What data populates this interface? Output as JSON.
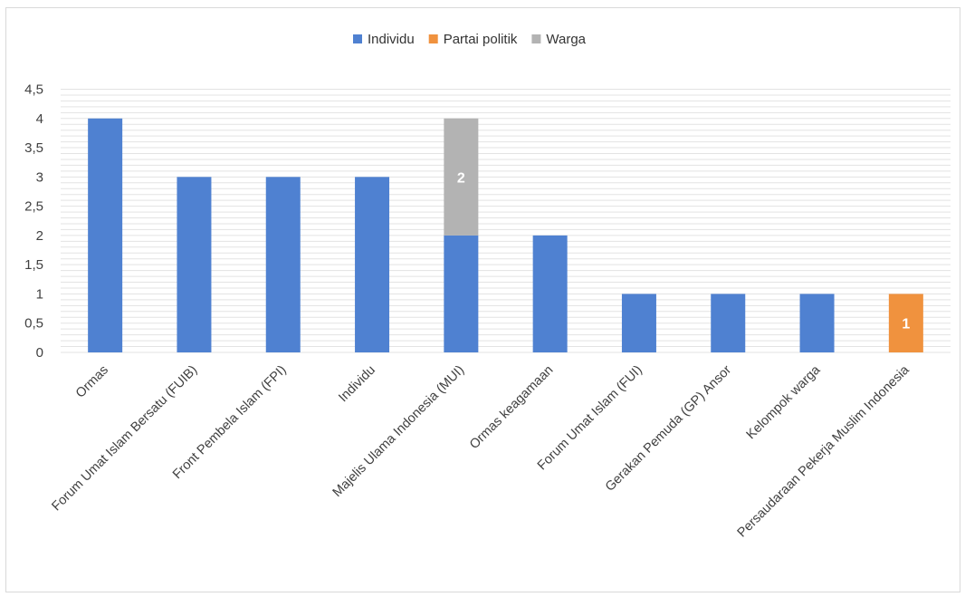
{
  "chart_data": {
    "type": "bar",
    "stacked": true,
    "categories": [
      "Ormas",
      "Forum Umat Islam Bersatu (FUIB)",
      "Front Pembela Islam (FPI)",
      "Individu",
      "Majelis Ulama Indonesia (MUI)",
      "Ormas keagamaan",
      "Forum Umat Islam (FUI)",
      "Gerakan Pemuda (GP) Ansor",
      "Kelompok warga",
      "Persaudaraan Pekerja Muslim Indonesia"
    ],
    "series": [
      {
        "name": "Individu",
        "color": "#4F81D1",
        "values": [
          4,
          3,
          3,
          3,
          2,
          2,
          1,
          1,
          1,
          0
        ]
      },
      {
        "name": "Partai politik",
        "color": "#F0923E",
        "values": [
          0,
          0,
          0,
          0,
          0,
          0,
          0,
          0,
          0,
          1
        ]
      },
      {
        "name": "Warga",
        "color": "#B3B3B3",
        "values": [
          0,
          0,
          0,
          0,
          2,
          0,
          0,
          0,
          0,
          0
        ]
      }
    ],
    "data_labels": [
      {
        "series": "Warga",
        "category": "Majelis Ulama Indonesia (MUI)",
        "text": "2"
      },
      {
        "series": "Partai politik",
        "category": "Persaudaraan Pekerja Muslim Indonesia",
        "text": "1"
      }
    ],
    "ylim": [
      0,
      4.5
    ],
    "yticks": [
      "0",
      "0,5",
      "1",
      "1,5",
      "2",
      "2,5",
      "3",
      "3,5",
      "4",
      "4,5"
    ],
    "title": "",
    "xlabel": "",
    "ylabel": "",
    "legend_position": "top",
    "grid": true
  }
}
